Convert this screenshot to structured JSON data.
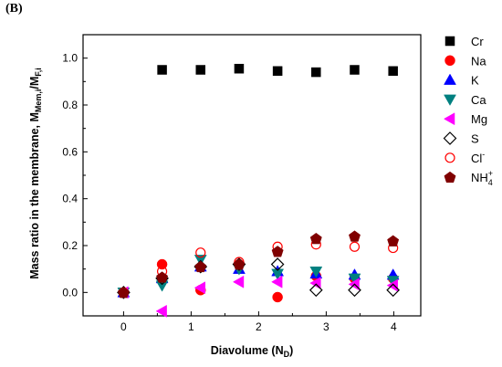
{
  "panel_label": "(B)",
  "chart_data": {
    "type": "scatter",
    "xlabel": "Diavolume (N",
    "xlabel_sub": "D",
    "xlabel_end": ")",
    "ylabel": "Mass ratio in the membrane, M",
    "ylabel_sub1": "Mem,i",
    "ylabel_mid": "/M",
    "ylabel_sub2": "F,i",
    "xlim": [
      -0.6,
      4.4
    ],
    "ylim": [
      -0.1,
      1.1
    ],
    "x_ticks": [
      0,
      1,
      2,
      3,
      4
    ],
    "x_tick_labels": [
      "0",
      "1",
      "2",
      "3",
      "4"
    ],
    "y_ticks": [
      0.0,
      0.2,
      0.4,
      0.6,
      0.8,
      1.0
    ],
    "y_tick_labels": [
      "0.0",
      "0.2",
      "0.4",
      "0.6",
      "0.8",
      "1.0"
    ],
    "legend_position": "right",
    "series": [
      {
        "name": "Cr",
        "marker": "square",
        "color": "#000000",
        "filled": true,
        "x": [
          0,
          0.57,
          1.14,
          1.71,
          2.28,
          2.85,
          3.42,
          3.99
        ],
        "y": [
          0.0,
          0.95,
          0.95,
          0.955,
          0.945,
          0.94,
          0.95,
          0.945
        ]
      },
      {
        "name": "Na",
        "marker": "circle",
        "color": "#ff0000",
        "filled": true,
        "x": [
          0,
          0.57,
          1.14,
          1.71,
          2.28,
          2.85,
          3.42,
          3.99
        ],
        "y": [
          0.0,
          0.12,
          0.01,
          0.12,
          -0.02,
          0.07,
          0.06,
          0.06
        ]
      },
      {
        "name": "K",
        "marker": "triangle-up",
        "color": "#0000ff",
        "filled": true,
        "x": [
          0,
          0.57,
          1.14,
          1.71,
          2.28,
          2.85,
          3.42,
          3.99
        ],
        "y": [
          0.0,
          0.06,
          0.11,
          0.1,
          0.09,
          0.08,
          0.075,
          0.075
        ]
      },
      {
        "name": "Ca",
        "marker": "triangle-down",
        "color": "#008080",
        "filled": true,
        "x": [
          0,
          0.57,
          1.14,
          1.71,
          2.28,
          2.85,
          3.42,
          3.99
        ],
        "y": [
          0.0,
          0.03,
          0.14,
          0.1,
          0.08,
          0.09,
          0.06,
          0.05
        ]
      },
      {
        "name": "Mg",
        "marker": "triangle-left",
        "color": "#ff00ff",
        "filled": true,
        "x": [
          0,
          0.57,
          1.14,
          1.71,
          2.28,
          2.85,
          3.42,
          3.99
        ],
        "y": [
          0.0,
          -0.08,
          0.02,
          0.045,
          0.045,
          0.04,
          0.035,
          0.03
        ]
      },
      {
        "name": "S",
        "marker": "diamond",
        "color": "#000000",
        "filled": false,
        "x": [
          0,
          0.57,
          1.14,
          1.71,
          2.28,
          2.85,
          3.42,
          3.99
        ],
        "y": [
          0.0,
          0.06,
          0.11,
          0.12,
          0.12,
          0.01,
          0.01,
          0.01
        ]
      },
      {
        "name": "Cl",
        "name_sup": "-",
        "marker": "circle",
        "color": "#ff0000",
        "filled": false,
        "x": [
          0,
          0.57,
          1.14,
          1.71,
          2.28,
          2.85,
          3.42,
          3.99
        ],
        "y": [
          0.0,
          0.09,
          0.17,
          0.13,
          0.195,
          0.205,
          0.195,
          0.19
        ]
      },
      {
        "name": "NH",
        "name_sub": "4",
        "name_sup": "+",
        "marker": "pentagon",
        "color": "#800000",
        "filled": true,
        "x": [
          0,
          0.57,
          1.14,
          1.71,
          2.28,
          2.85,
          3.42,
          3.99
        ],
        "y": [
          0.0,
          0.065,
          0.11,
          0.12,
          0.175,
          0.23,
          0.24,
          0.22
        ]
      }
    ]
  }
}
